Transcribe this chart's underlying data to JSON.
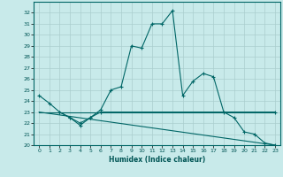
{
  "xlabel": "Humidex (Indice chaleur)",
  "ylabel": "",
  "background_color": "#c8eaea",
  "grid_color": "#aacece",
  "line_color": "#006666",
  "text_color": "#005555",
  "xlim": [
    -0.5,
    23.5
  ],
  "ylim": [
    20,
    33
  ],
  "xticks": [
    0,
    1,
    2,
    3,
    4,
    5,
    6,
    7,
    8,
    9,
    10,
    11,
    12,
    13,
    14,
    15,
    16,
    17,
    18,
    19,
    20,
    21,
    22,
    23
  ],
  "yticks": [
    20,
    21,
    22,
    23,
    24,
    25,
    26,
    27,
    28,
    29,
    30,
    31,
    32
  ],
  "series1_x": [
    0,
    1,
    2,
    3,
    4,
    5,
    6,
    7,
    8,
    9,
    10,
    11,
    12,
    13,
    14,
    15,
    16,
    17,
    18,
    19,
    20,
    21,
    22,
    23
  ],
  "series1_y": [
    24.5,
    23.8,
    23.0,
    22.5,
    21.8,
    22.5,
    23.2,
    25.0,
    25.3,
    29.0,
    28.8,
    31.0,
    31.0,
    32.2,
    24.5,
    25.8,
    26.5,
    26.2,
    23.0,
    22.5,
    21.2,
    21.0,
    20.2,
    20.0
  ],
  "series2_x": [
    2,
    3,
    4,
    5,
    6,
    23
  ],
  "series2_y": [
    23.0,
    22.5,
    22.0,
    22.5,
    23.0,
    23.0
  ],
  "series3_x": [
    0,
    23
  ],
  "series3_y": [
    23.0,
    23.0
  ],
  "series4_x": [
    0,
    23
  ],
  "series4_y": [
    23.0,
    20.0
  ]
}
